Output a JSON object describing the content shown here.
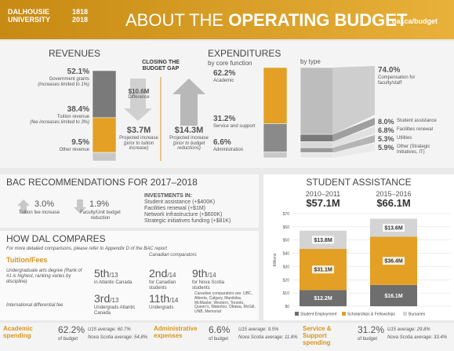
{
  "header": {
    "logo_lines": [
      "DALHOUSIE",
      "UNIVERSITY"
    ],
    "anniversary": [
      "1818",
      "2018"
    ],
    "title_prefix": "ABOUT THE",
    "title": "OPERATING BUDGET",
    "url": "dal.ca/budget"
  },
  "revenues": {
    "title": "REVENUES",
    "segments": [
      {
        "value": 52.1,
        "label": "52.1%",
        "name": "Government grants",
        "note": "(increases limited to 1%)",
        "color": "#7a7a7a"
      },
      {
        "value": 38.4,
        "label": "38.4%",
        "name": "Tuition revenue",
        "note": "(fee increases limited to 3%)",
        "color": "#e3a024"
      },
      {
        "value": 9.5,
        "label": "9.5%",
        "name": "Other revenue",
        "color": "#c8c8c8"
      }
    ]
  },
  "budget_gap": {
    "title": "CLOSING THE BUDGET GAP",
    "difference": {
      "amount": "$10.6M",
      "label": "Difference"
    },
    "revenue_increase": {
      "amount": "$3.7M",
      "label": "Projected increase",
      "note": "(prior to tuition increase)"
    },
    "expense_increase": {
      "amount": "$14.3M",
      "label": "Projected increase",
      "note": "(prior to budget reductions)"
    }
  },
  "expenditures": {
    "title": "EXPENDITURES",
    "subtitle": "by core function",
    "segments": [
      {
        "value": 62.2,
        "label": "62.2%",
        "name": "Academic",
        "color": "#e3a024"
      },
      {
        "value": 31.2,
        "label": "31.2%",
        "name": "Service and support",
        "color": "#8a8a8a"
      },
      {
        "value": 6.6,
        "label": "6.6%",
        "name": "Administration",
        "color": "#c8c8c8"
      }
    ]
  },
  "by_type": {
    "title": "by type",
    "segments": [
      {
        "value": 74,
        "label": "74.0%",
        "name": "Compensation for faculty/staff",
        "color": "#bdbdbd"
      },
      {
        "value": 8,
        "label": "8.0%",
        "name": "Student assistance",
        "color": "#7a7a7a"
      },
      {
        "value": 6.8,
        "label": "6.8%",
        "name": "Facilities renewal",
        "color": "#d8d8d8"
      },
      {
        "value": 5.3,
        "label": "5.3%",
        "name": "Utilities",
        "color": "#9a9a9a"
      },
      {
        "value": 5.9,
        "label": "5.9%",
        "name": "Other (Strategic Initiatives, IT)",
        "color": "#e6e6e6"
      }
    ]
  },
  "bac": {
    "title": "BAC RECOMMENDATIONS FOR 2017–2018",
    "items": [
      {
        "value": "3.0%",
        "label": "Tuition fee increase"
      },
      {
        "value": "1.9%",
        "label": "Faculty/Unit budget reduction"
      }
    ],
    "investments_title": "INVESTMENTS IN:",
    "investments": [
      "Student assistance (+$400K)",
      "Facilities renewal (+$1M)",
      "Network infrastructure (+$600K)",
      "Strategic initiatives funding (+$81K)"
    ]
  },
  "compare": {
    "title": "HOW DAL COMPARES",
    "note": "For more detailed comparisons, please refer to Appendix D of the BAC report",
    "tuition_title": "Tuition/Fees",
    "comparators_title": "Canadian comparators",
    "rows": [
      {
        "label": "Undergraduate arts degree (Rank of #1 is highest, ranking varies by discipline)",
        "ranks": [
          {
            "rank": "5th",
            "of": "/13",
            "label": "in Atlantic Canada"
          },
          {
            "rank": "2nd",
            "of": "/14",
            "label": "for Canadian students"
          },
          {
            "rank": "9th",
            "of": "/14",
            "label": "for Nova Scotia students"
          }
        ]
      },
      {
        "label": "International differential fee",
        "ranks": [
          {
            "rank": "3rd",
            "of": "/13",
            "label": "Undergrads Atlantic Canada"
          },
          {
            "rank": "11th",
            "of": "/14",
            "label": "Undergrads"
          }
        ]
      }
    ],
    "comparators_note": "Canadian comparators are: UBC, Alberta, Calgary, Manitoba, McMaster, Western, Toronto, Queen's, Waterloo, Ottawa, McGill, UNB, Memorial"
  },
  "student_assistance": {
    "title": "STUDENT ASSISTANCE",
    "totals": [
      "$57.1M",
      "$66.1M"
    ],
    "chart_data": {
      "type": "bar",
      "stacked": true,
      "y_label": "Millions",
      "categories": [
        "2010–2011",
        "2015–2016"
      ],
      "ylim": [
        0,
        70
      ],
      "yticks": [
        {
          "value": 0,
          "label": "$0"
        },
        {
          "value": 10,
          "label": "$10"
        },
        {
          "value": 20,
          "label": "$20"
        },
        {
          "value": 30,
          "label": "$30"
        },
        {
          "value": 40,
          "label": "$40"
        },
        {
          "value": 50,
          "label": "$50"
        },
        {
          "value": 60,
          "label": "$60"
        },
        {
          "value": 70,
          "label": "$70"
        }
      ],
      "grid": true,
      "series": [
        {
          "name": "Student Employment",
          "color": "#6e6e6e",
          "values": [
            12.2,
            16.1
          ],
          "value_labels": [
            "$12.2M",
            "$16.1M"
          ]
        },
        {
          "name": "Scholarships & Fellowships",
          "color": "#e3a024",
          "values": [
            31.1,
            36.4
          ],
          "value_labels": [
            "$31.1M",
            "$36.4M"
          ]
        },
        {
          "name": "Bursaries",
          "color": "#d4d4d4",
          "values": [
            13.8,
            13.6
          ],
          "value_labels": [
            "$13.8M",
            "$13.6M"
          ]
        }
      ]
    }
  },
  "footer": [
    {
      "title": "Academic spending",
      "value": "62.2%",
      "label": "of budget",
      "u15": "U15 average: 60.7%",
      "ns": "Nova Scotia average: 54.8%"
    },
    {
      "title": "Administrative expenses",
      "value": "6.6%",
      "label": "of budget",
      "u15": "U15 average: 9.5%",
      "ns": "Nova Scotia average: 11.8%"
    },
    {
      "title": "Service & Support spending",
      "value": "31.2%",
      "label": "of budget",
      "u15": "U15 average: 29.8%",
      "ns": "Nova Scotia average: 33.4%"
    }
  ]
}
